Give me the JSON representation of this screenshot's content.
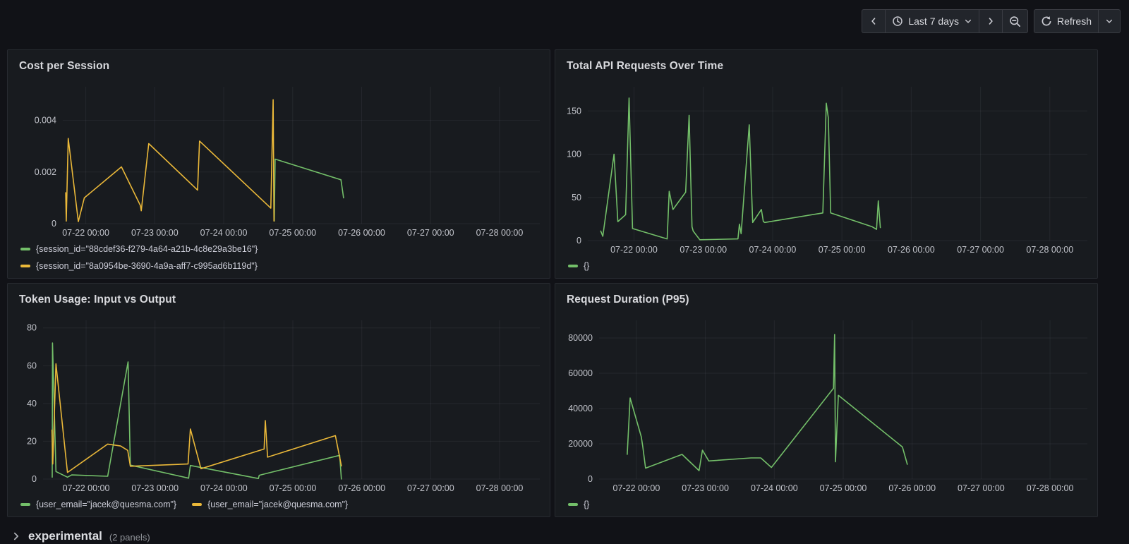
{
  "toolbar": {
    "time_range": "Last 7 days",
    "refresh": "Refresh"
  },
  "row_footer": {
    "name": "experimental",
    "count": "(2 panels)"
  },
  "colors": {
    "green": "#73BF69",
    "yellow": "#EAB839",
    "panel_bg": "#181B1F",
    "page_bg": "#111217",
    "grid": "rgba(204,204,220,0.07)"
  },
  "x_axis": {
    "tick_hours": [
      24,
      48,
      72,
      96,
      120,
      144,
      168
    ],
    "tick_labels": [
      "07-22 00:00",
      "07-23 00:00",
      "07-24 00:00",
      "07-25 00:00",
      "07-26 00:00",
      "07-27 00:00",
      "07-28 00:00"
    ]
  },
  "chart_data": [
    {
      "type": "line",
      "title": "Cost per Session",
      "x_domain": [
        16,
        182
      ],
      "y_domain": [
        0,
        0.0053
      ],
      "y_tick_values": [
        0,
        0.002,
        0.004
      ],
      "y_tick_labels": [
        "0",
        "0.002",
        "0.004"
      ],
      "legend_layout": "stack",
      "series": [
        {
          "name": "{session_id=\"88cdef36-f279-4a64-a21b-4c8e29a3be16\"}",
          "color": "#73BF69",
          "points": [
            [
              89.6,
              0.0001
            ],
            [
              89.9,
              0.0025
            ],
            [
              112.8,
              0.0017
            ],
            [
              113.7,
              0.001
            ]
          ]
        },
        {
          "name": "{session_id=\"8a0954be-3690-4a9a-aff7-c995ad6b119d\"}",
          "color": "#EAB839",
          "points": [
            [
              17,
              0.0012
            ],
            [
              17.2,
              0.0001
            ],
            [
              17.9,
              0.0033
            ],
            [
              21.4,
              8e-05
            ],
            [
              23.5,
              0.001
            ],
            [
              36.4,
              0.0022
            ],
            [
              43,
              0.0007
            ],
            [
              43.3,
              0.0005
            ],
            [
              45.9,
              0.0031
            ],
            [
              62.9,
              0.0013
            ],
            [
              63.6,
              0.0032
            ],
            [
              88.4,
              0.0006
            ],
            [
              89.2,
              0.0048
            ],
            [
              89.5,
              0.0001
            ]
          ]
        }
      ]
    },
    {
      "type": "line",
      "title": "Total API Requests Over Time",
      "x_domain": [
        8,
        181
      ],
      "y_domain": [
        0,
        178
      ],
      "y_tick_values": [
        0,
        50,
        100,
        150
      ],
      "y_tick_labels": [
        "0",
        "50",
        "100",
        "150"
      ],
      "legend_layout": "inline",
      "series": [
        {
          "name": "{}",
          "color": "#73BF69",
          "points": [
            [
              12.5,
              11
            ],
            [
              13.2,
              5
            ],
            [
              17.1,
              100
            ],
            [
              18.4,
              22
            ],
            [
              21.1,
              30
            ],
            [
              22.3,
              165
            ],
            [
              23.5,
              14
            ],
            [
              35.5,
              2
            ],
            [
              36.2,
              57
            ],
            [
              37.5,
              36
            ],
            [
              41.9,
              56
            ],
            [
              43.1,
              145
            ],
            [
              44.1,
              16
            ],
            [
              44.5,
              11
            ],
            [
              46.8,
              1
            ],
            [
              60,
              2
            ],
            [
              60.5,
              19
            ],
            [
              61.1,
              8
            ],
            [
              63.9,
              134
            ],
            [
              65.1,
              21
            ],
            [
              68.1,
              36
            ],
            [
              68.8,
              22
            ],
            [
              69.3,
              21
            ],
            [
              89.4,
              32
            ],
            [
              90.6,
              159
            ],
            [
              91.3,
              142
            ],
            [
              92.1,
              32
            ],
            [
              106.5,
              16
            ],
            [
              108,
              13
            ],
            [
              108.6,
              46
            ],
            [
              109.3,
              15
            ]
          ]
        }
      ]
    },
    {
      "type": "line",
      "title": "Token Usage: Input vs Output",
      "x_domain": [
        9,
        182
      ],
      "y_domain": [
        0,
        84
      ],
      "y_tick_values": [
        0,
        20,
        40,
        60,
        80
      ],
      "y_tick_labels": [
        "0",
        "20",
        "40",
        "60",
        "80"
      ],
      "legend_layout": "inline",
      "series": [
        {
          "name": "{user_email=\"jacek@quesma.com\"}",
          "color": "#73BF69",
          "points": [
            [
              12.2,
              1
            ],
            [
              12.3,
              72
            ],
            [
              13.5,
              4
            ],
            [
              17.5,
              1
            ],
            [
              19,
              2.2
            ],
            [
              31.5,
              1.5
            ],
            [
              38.6,
              62
            ],
            [
              39.4,
              7.4
            ],
            [
              59.7,
              0.5
            ],
            [
              60.3,
              7.2
            ],
            [
              84,
              0.3
            ],
            [
              84.3,
              2
            ],
            [
              112.3,
              12.6
            ],
            [
              112.9,
              0
            ]
          ]
        },
        {
          "name": "{user_email=\"jacek@quesma.com\"}",
          "color": "#EAB839",
          "points": [
            [
              12.1,
              26
            ],
            [
              12.4,
              8
            ],
            [
              13.5,
              61
            ],
            [
              17.5,
              3.5
            ],
            [
              31.5,
              18.5
            ],
            [
              36,
              17.5
            ],
            [
              38.5,
              15.2
            ],
            [
              39.4,
              6.8
            ],
            [
              59.5,
              8
            ],
            [
              60.3,
              26.5
            ],
            [
              64,
              5.5
            ],
            [
              86,
              15.9
            ],
            [
              86.4,
              31
            ],
            [
              87.2,
              11.6
            ],
            [
              110.8,
              23
            ],
            [
              112.9,
              7
            ]
          ]
        }
      ]
    },
    {
      "type": "line",
      "title": "Request Duration (P95)",
      "x_domain": [
        11,
        181
      ],
      "y_domain": [
        0,
        90000
      ],
      "y_tick_values": [
        0,
        20000,
        40000,
        60000,
        80000
      ],
      "y_tick_labels": [
        "0",
        "20000",
        "40000",
        "60000",
        "80000"
      ],
      "legend_layout": "inline",
      "series": [
        {
          "name": "{}",
          "color": "#73BF69",
          "points": [
            [
              20.8,
              14000
            ],
            [
              21.8,
              46000
            ],
            [
              25.7,
              24000
            ],
            [
              26.2,
              18500
            ],
            [
              27.2,
              6200
            ],
            [
              39.9,
              14000
            ],
            [
              45.8,
              4800
            ],
            [
              47,
              16400
            ],
            [
              49.2,
              10300
            ],
            [
              63.9,
              12000
            ],
            [
              67.3,
              12000
            ],
            [
              71,
              6600
            ],
            [
              92.6,
              51500
            ],
            [
              93,
              82000
            ],
            [
              93.3,
              9800
            ],
            [
              94.3,
              47500
            ],
            [
              116.6,
              18200
            ],
            [
              118.3,
              8400
            ]
          ]
        }
      ]
    }
  ]
}
